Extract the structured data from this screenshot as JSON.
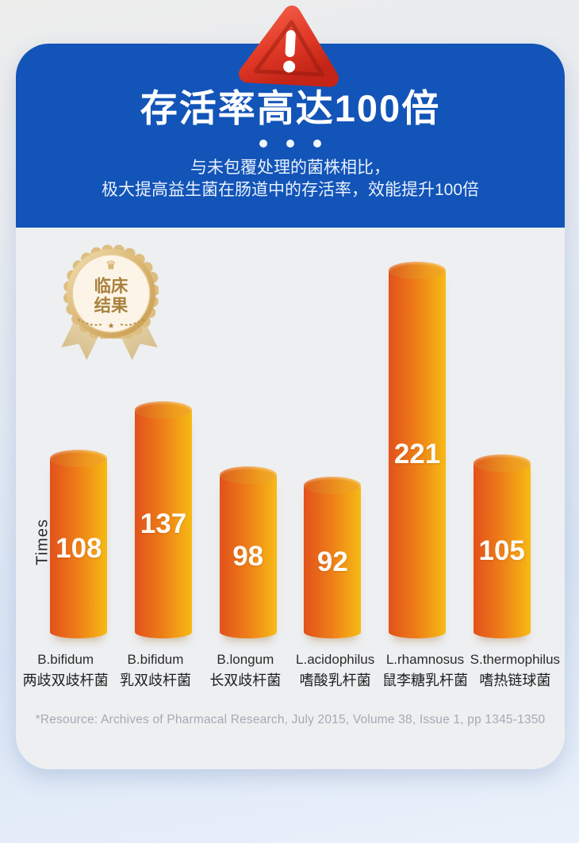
{
  "header": {
    "title": "存活率高达100倍",
    "subtitle_line1": "与未包覆处理的菌株相比，",
    "subtitle_line2": "极大提高益生菌在肠道中的存活率，效能提升100倍"
  },
  "badge": {
    "line1": "临床",
    "line2": "结果",
    "crown": "♛",
    "star": "★"
  },
  "chart_data": {
    "type": "bar",
    "title": "存活率高达100倍",
    "ylabel": "Times",
    "xlabel": "",
    "legend": [],
    "grid": false,
    "value_labels_on_bars": true,
    "categories": [
      {
        "latin": "B.bifidum",
        "chinese": "两歧双歧杆菌"
      },
      {
        "latin": "B.bifidum",
        "chinese": "乳双歧杆菌"
      },
      {
        "latin": "B.longum",
        "chinese": "长双歧杆菌"
      },
      {
        "latin": "L.acidophilus",
        "chinese": "嗜酸乳杆菌"
      },
      {
        "latin": "L.rhamnosus",
        "chinese": "鼠李糖乳杆菌"
      },
      {
        "latin": "S.thermophilus",
        "chinese": "嗜热链球菌"
      }
    ],
    "values": [
      108,
      137,
      98,
      92,
      221,
      105
    ],
    "ylim": [
      0,
      230
    ],
    "bar_color_start": "#e2511c",
    "bar_color_end": "#f6bb14"
  },
  "footer": {
    "resource": "*Resource: Archives of Pharmacal Research, July 2015, Volume 38, Issue 1, pp  1345-1350"
  },
  "colors": {
    "header_blue": "#1254b8",
    "panel_gray": "#edeff1",
    "alert_red": "#dd3322",
    "badge_gold": "#c9973f"
  }
}
